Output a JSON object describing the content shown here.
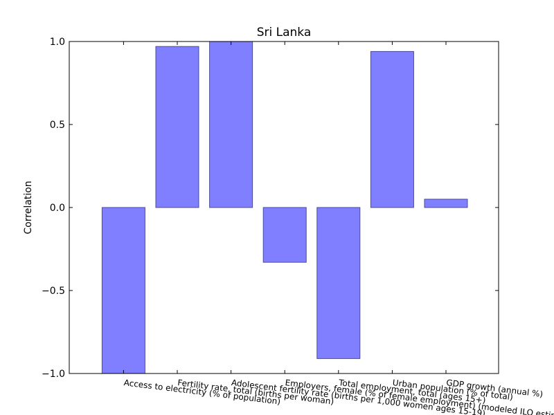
{
  "chart_data": {
    "type": "bar",
    "title": "Sri Lanka",
    "xlabel": "",
    "ylabel": "Correlation",
    "ylim": [
      -1.0,
      1.0
    ],
    "yticks": [
      "1.0",
      "0.5",
      "0.0",
      "−0.5",
      "−1.0"
    ],
    "ytick_values": [
      1.0,
      0.5,
      0.0,
      -0.5,
      -1.0
    ],
    "categories": [
      "Access to electricity (% of population)",
      "Fertility rate, total (births per woman)",
      "Adolescent fertility rate (births per 1,000 women ages 15-19)",
      "Employers, female (% of female employment) (modeled ILO estimate)",
      "Total employment, total (ages 15+)",
      "Urban population (% of total)",
      "GDP growth (annual %)"
    ],
    "values": [
      -1.0,
      0.97,
      1.0,
      -0.33,
      -0.91,
      0.94,
      0.05
    ],
    "bar_color": "#7f7fff",
    "bar_edge_color": "#4a4a99",
    "grid": false
  }
}
